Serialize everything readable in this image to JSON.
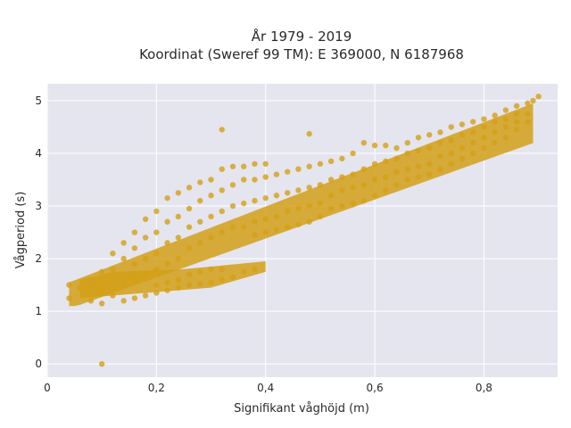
{
  "chart_data": {
    "type": "scatter",
    "title_line1": "År 1979 - 2019",
    "title_line2": "Koordinat (Sweref 99 TM): E 369000, N 6187968",
    "xlabel": "Signifikant våghöjd (m)",
    "ylabel": "Vågperiod (s)",
    "xlim": [
      0,
      0.935
    ],
    "ylim": [
      -0.25,
      5.32
    ],
    "x_ticks": [
      0,
      0.2,
      0.4,
      0.6,
      0.8
    ],
    "x_tick_labels": [
      "0",
      "0,2",
      "0,4",
      "0,6",
      "0,8"
    ],
    "y_ticks": [
      0,
      1,
      2,
      3,
      4,
      5
    ],
    "y_tick_labels": [
      "0",
      "1",
      "2",
      "3",
      "4",
      "5"
    ],
    "grid": true,
    "point_color": "#D4A017",
    "background_color": "#E5E5EF",
    "series": [
      {
        "points": [
          [
            0.1,
            0.0
          ],
          [
            0.04,
            1.25
          ],
          [
            0.04,
            1.5
          ],
          [
            0.06,
            1.45
          ],
          [
            0.08,
            1.2
          ],
          [
            0.08,
            1.6
          ],
          [
            0.1,
            1.15
          ],
          [
            0.1,
            1.4
          ],
          [
            0.1,
            1.75
          ],
          [
            0.12,
            1.3
          ],
          [
            0.12,
            1.8
          ],
          [
            0.12,
            2.1
          ],
          [
            0.14,
            1.2
          ],
          [
            0.14,
            1.5
          ],
          [
            0.14,
            2.0
          ],
          [
            0.14,
            2.3
          ],
          [
            0.16,
            1.25
          ],
          [
            0.16,
            1.6
          ],
          [
            0.16,
            1.9
          ],
          [
            0.16,
            2.2
          ],
          [
            0.16,
            2.5
          ],
          [
            0.18,
            1.3
          ],
          [
            0.18,
            1.7
          ],
          [
            0.18,
            2.0
          ],
          [
            0.18,
            2.4
          ],
          [
            0.18,
            2.75
          ],
          [
            0.2,
            1.35
          ],
          [
            0.2,
            1.5
          ],
          [
            0.2,
            1.8
          ],
          [
            0.2,
            2.1
          ],
          [
            0.2,
            2.5
          ],
          [
            0.2,
            2.9
          ],
          [
            0.22,
            1.4
          ],
          [
            0.22,
            1.55
          ],
          [
            0.22,
            1.9
          ],
          [
            0.22,
            2.3
          ],
          [
            0.22,
            2.7
          ],
          [
            0.22,
            3.15
          ],
          [
            0.24,
            1.45
          ],
          [
            0.24,
            1.6
          ],
          [
            0.24,
            2.0
          ],
          [
            0.24,
            2.4
          ],
          [
            0.24,
            2.8
          ],
          [
            0.24,
            3.25
          ],
          [
            0.26,
            1.5
          ],
          [
            0.26,
            1.7
          ],
          [
            0.26,
            2.2
          ],
          [
            0.26,
            2.6
          ],
          [
            0.26,
            2.95
          ],
          [
            0.26,
            3.35
          ],
          [
            0.28,
            1.52
          ],
          [
            0.28,
            1.75
          ],
          [
            0.28,
            2.3
          ],
          [
            0.28,
            2.7
          ],
          [
            0.28,
            3.1
          ],
          [
            0.28,
            3.45
          ],
          [
            0.3,
            1.55
          ],
          [
            0.3,
            1.8
          ],
          [
            0.3,
            2.4
          ],
          [
            0.3,
            2.8
          ],
          [
            0.3,
            3.2
          ],
          [
            0.3,
            3.5
          ],
          [
            0.32,
            1.6
          ],
          [
            0.32,
            1.8
          ],
          [
            0.32,
            2.5
          ],
          [
            0.32,
            2.9
          ],
          [
            0.32,
            3.3
          ],
          [
            0.32,
            3.7
          ],
          [
            0.32,
            4.45
          ],
          [
            0.34,
            1.65
          ],
          [
            0.34,
            2.6
          ],
          [
            0.34,
            3.0
          ],
          [
            0.34,
            3.4
          ],
          [
            0.34,
            3.75
          ],
          [
            0.36,
            1.75
          ],
          [
            0.36,
            2.6
          ],
          [
            0.36,
            3.05
          ],
          [
            0.36,
            3.5
          ],
          [
            0.36,
            3.75
          ],
          [
            0.38,
            1.8
          ],
          [
            0.38,
            2.45
          ],
          [
            0.38,
            2.7
          ],
          [
            0.38,
            3.1
          ],
          [
            0.38,
            3.5
          ],
          [
            0.38,
            3.8
          ],
          [
            0.4,
            2.5
          ],
          [
            0.4,
            2.75
          ],
          [
            0.4,
            3.15
          ],
          [
            0.4,
            3.55
          ],
          [
            0.4,
            3.8
          ],
          [
            0.42,
            2.55
          ],
          [
            0.42,
            2.8
          ],
          [
            0.42,
            3.2
          ],
          [
            0.42,
            3.6
          ],
          [
            0.44,
            2.6
          ],
          [
            0.44,
            2.9
          ],
          [
            0.44,
            3.25
          ],
          [
            0.44,
            3.65
          ],
          [
            0.46,
            2.65
          ],
          [
            0.46,
            2.95
          ],
          [
            0.46,
            3.3
          ],
          [
            0.46,
            3.7
          ],
          [
            0.48,
            2.7
          ],
          [
            0.48,
            3.0
          ],
          [
            0.48,
            3.35
          ],
          [
            0.48,
            3.75
          ],
          [
            0.48,
            4.37
          ],
          [
            0.5,
            2.8
          ],
          [
            0.5,
            3.05
          ],
          [
            0.5,
            3.4
          ],
          [
            0.5,
            3.8
          ],
          [
            0.52,
            2.95
          ],
          [
            0.52,
            3.2
          ],
          [
            0.52,
            3.5
          ],
          [
            0.52,
            3.85
          ],
          [
            0.54,
            3.0
          ],
          [
            0.54,
            3.3
          ],
          [
            0.54,
            3.55
          ],
          [
            0.54,
            3.9
          ],
          [
            0.56,
            3.05
          ],
          [
            0.56,
            3.35
          ],
          [
            0.56,
            3.6
          ],
          [
            0.56,
            4.0
          ],
          [
            0.58,
            3.1
          ],
          [
            0.58,
            3.4
          ],
          [
            0.58,
            3.7
          ],
          [
            0.58,
            4.2
          ],
          [
            0.6,
            3.2
          ],
          [
            0.6,
            3.5
          ],
          [
            0.6,
            3.8
          ],
          [
            0.6,
            4.15
          ],
          [
            0.62,
            3.3
          ],
          [
            0.62,
            3.55
          ],
          [
            0.62,
            3.85
          ],
          [
            0.62,
            4.15
          ],
          [
            0.64,
            3.4
          ],
          [
            0.64,
            3.65
          ],
          [
            0.64,
            3.9
          ],
          [
            0.64,
            4.1
          ],
          [
            0.66,
            3.5
          ],
          [
            0.66,
            3.7
          ],
          [
            0.66,
            4.0
          ],
          [
            0.66,
            4.2
          ],
          [
            0.68,
            3.55
          ],
          [
            0.68,
            3.75
          ],
          [
            0.68,
            4.05
          ],
          [
            0.68,
            4.3
          ],
          [
            0.7,
            3.6
          ],
          [
            0.7,
            3.8
          ],
          [
            0.7,
            4.1
          ],
          [
            0.7,
            4.35
          ],
          [
            0.72,
            3.7
          ],
          [
            0.72,
            3.95
          ],
          [
            0.72,
            4.2
          ],
          [
            0.72,
            4.4
          ],
          [
            0.74,
            3.8
          ],
          [
            0.74,
            4.0
          ],
          [
            0.74,
            4.25
          ],
          [
            0.74,
            4.5
          ],
          [
            0.76,
            3.9
          ],
          [
            0.76,
            4.1
          ],
          [
            0.76,
            4.35
          ],
          [
            0.76,
            4.55
          ],
          [
            0.78,
            4.0
          ],
          [
            0.78,
            4.2
          ],
          [
            0.78,
            4.4
          ],
          [
            0.78,
            4.6
          ],
          [
            0.8,
            4.1
          ],
          [
            0.8,
            4.3
          ],
          [
            0.8,
            4.5
          ],
          [
            0.8,
            4.65
          ],
          [
            0.82,
            4.2
          ],
          [
            0.82,
            4.4
          ],
          [
            0.82,
            4.6
          ],
          [
            0.82,
            4.72
          ],
          [
            0.84,
            4.3
          ],
          [
            0.84,
            4.5
          ],
          [
            0.84,
            4.65
          ],
          [
            0.84,
            4.82
          ],
          [
            0.86,
            4.45
          ],
          [
            0.86,
            4.6
          ],
          [
            0.86,
            4.75
          ],
          [
            0.86,
            4.9
          ],
          [
            0.88,
            4.6
          ],
          [
            0.88,
            4.75
          ],
          [
            0.88,
            4.95
          ],
          [
            0.89,
            5.0
          ],
          [
            0.9,
            5.08
          ]
        ]
      }
    ]
  }
}
